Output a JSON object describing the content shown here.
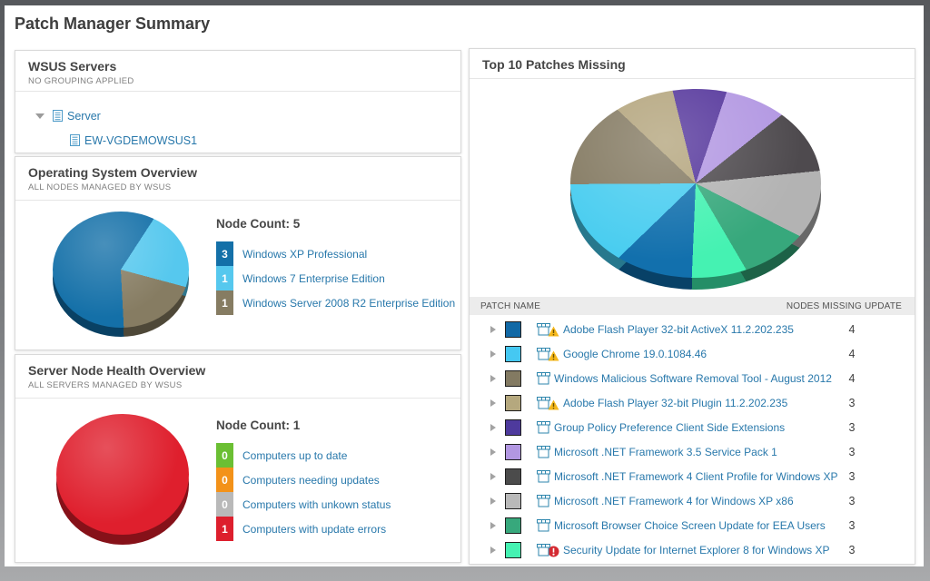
{
  "page": {
    "title": "Patch Manager Summary"
  },
  "wsus_panel": {
    "title": "WSUS Servers",
    "subtitle": "NO GROUPING APPLIED",
    "tree": {
      "root_label": "Server",
      "child_label": "EW-VGDEMOWSUS1"
    }
  },
  "os_panel": {
    "title": "Operating System Overview",
    "subtitle": "ALL NODES MANAGED BY WSUS",
    "node_count_label": "Node Count: 5",
    "legend": [
      {
        "count": "3",
        "label": "Windows XP Professional",
        "color": "#1470a8"
      },
      {
        "count": "1",
        "label": "Windows 7 Enterprise Edition",
        "color": "#56c8ee"
      },
      {
        "count": "1",
        "label": "Windows Server 2008 R2 Enterprise Edition",
        "color": "#867c62"
      }
    ]
  },
  "health_panel": {
    "title": "Server Node Health Overview",
    "subtitle": "ALL SERVERS MANAGED BY WSUS",
    "node_count_label": "Node Count: 1",
    "legend": [
      {
        "count": "0",
        "label": "Computers up to date",
        "color": "#6bbf33"
      },
      {
        "count": "0",
        "label": "Computers needing updates",
        "color": "#f39219"
      },
      {
        "count": "0",
        "label": "Computers with unkown status",
        "color": "#b9b9b9"
      },
      {
        "count": "1",
        "label": "Computers with update errors",
        "color": "#dd1f2d"
      }
    ]
  },
  "patches_panel": {
    "title": "Top 10 Patches Missing",
    "table": {
      "columns": [
        "PATCH NAME",
        "NODES MISSING UPDATE"
      ],
      "rows": [
        {
          "color": "#1269a6",
          "badge": "warning",
          "name": "Adobe Flash Player 32-bit ActiveX 11.2.202.235",
          "nodes": "4"
        },
        {
          "color": "#45c8f2",
          "badge": "warning",
          "name": "Google Chrome 19.0.1084.46",
          "nodes": "4"
        },
        {
          "color": "#837a62",
          "badge": "none",
          "name": "Windows Malicious Software Removal Tool - August 2012",
          "nodes": "4"
        },
        {
          "color": "#b5a87e",
          "badge": "warning",
          "name": "Adobe Flash Player 32-bit Plugin 11.2.202.235",
          "nodes": "3"
        },
        {
          "color": "#4e3a9d",
          "badge": "none",
          "name": "Group Policy Preference Client Side Extensions",
          "nodes": "3"
        },
        {
          "color": "#b297e2",
          "badge": "none",
          "name": "Microsoft .NET Framework 3.5 Service Pack 1",
          "nodes": "3"
        },
        {
          "color": "#4b4b4b",
          "badge": "none",
          "name": "Microsoft .NET Framework 4 Client Profile for Windows XP",
          "nodes": "3"
        },
        {
          "color": "#b9b9b9",
          "badge": "none",
          "name": "Microsoft .NET Framework 4 for Windows XP x86",
          "nodes": "3"
        },
        {
          "color": "#37a87c",
          "badge": "none",
          "name": "Microsoft Browser Choice Screen Update for EEA Users",
          "nodes": "3"
        },
        {
          "color": "#45f2b2",
          "badge": "error",
          "name": "Security Update for Internet Explorer 8 for Windows XP",
          "nodes": "3"
        }
      ]
    }
  },
  "chart_data": [
    {
      "type": "pie",
      "title": "Operating System Overview",
      "start_angle": 33,
      "slices": [
        {
          "label": "Windows 7 Enterprise Edition",
          "value": 1,
          "color": "#56c8ee"
        },
        {
          "label": "Windows Server 2008 R2 Enterprise Edition",
          "value": 1,
          "color": "#867c62"
        },
        {
          "label": "Windows XP Professional",
          "value": 3,
          "color": "#1470a8"
        }
      ]
    },
    {
      "type": "pie",
      "title": "Server Node Health Overview",
      "start_angle": 0,
      "slices": [
        {
          "label": "Computers with update errors",
          "value": 1,
          "color": "#df1f2d"
        }
      ]
    },
    {
      "type": "pie",
      "title": "Top 10 Patches Missing",
      "start_angle": -14,
      "slices": [
        {
          "label": "Group Policy Preference Client Side Extensions",
          "value": 3,
          "color": "#54359b"
        },
        {
          "label": "Microsoft .NET Framework 3.5 Service Pack 1",
          "value": 3,
          "color": "#b297e2"
        },
        {
          "label": "Microsoft .NET Framework 4 Client Profile for Windows XP",
          "value": 3,
          "color": "#4e4a4e"
        },
        {
          "label": "Microsoft .NET Framework 4 for Windows XP x86",
          "value": 3,
          "color": "#b3b3b3"
        },
        {
          "label": "Microsoft Browser Choice Screen Update for EEA Users",
          "value": 3,
          "color": "#37a87c"
        },
        {
          "label": "Security Update for Internet Explorer 8 for Windows XP",
          "value": 3,
          "color": "#45f2b2"
        },
        {
          "label": "Adobe Flash Player 32-bit ActiveX 11.2.202.235",
          "value": 4,
          "color": "#1270ad"
        },
        {
          "label": "Google Chrome 19.0.1084.46",
          "value": 4,
          "color": "#49cdf0"
        },
        {
          "label": "Windows Malicious Software Removal Tool - August 2012",
          "value": 4,
          "color": "#847a62"
        },
        {
          "label": "Adobe Flash Player 32-bit Plugin 11.2.202.235",
          "value": 3,
          "color": "#b3a47c"
        }
      ]
    }
  ]
}
